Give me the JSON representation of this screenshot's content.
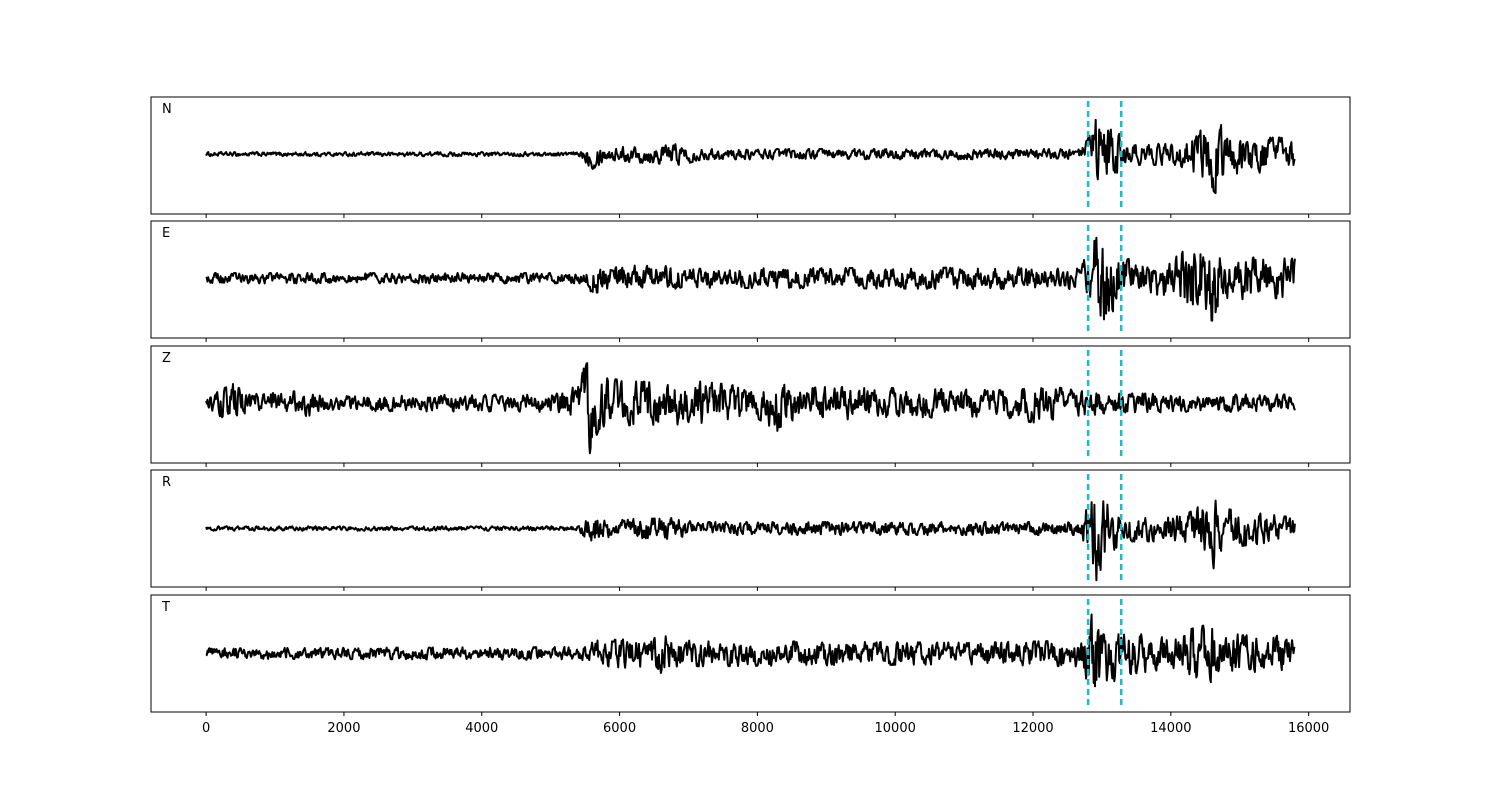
{
  "chart_data": {
    "type": "line",
    "x_axis": {
      "xlim": [
        -800,
        16600
      ],
      "ticks": [
        0,
        2000,
        4000,
        6000,
        8000,
        10000,
        12000,
        14000,
        16000
      ],
      "tick_labels": [
        "0",
        "2000",
        "4000",
        "6000",
        "8000",
        "10000",
        "12000",
        "14000",
        "16000"
      ]
    },
    "n_samples": 15800,
    "marker_lines": {
      "color": "#17becf",
      "style": "dashed",
      "x": [
        12800,
        13280
      ]
    },
    "y_axis": {
      "visible": false,
      "ylim": [
        -1.35,
        1.35
      ]
    },
    "trace_color": "#000000",
    "series": [
      {
        "name": "N",
        "baseline": 0.03,
        "envelope": [
          [
            0,
            0.05
          ],
          [
            5400,
            0.05
          ],
          [
            5500,
            0.18
          ],
          [
            5600,
            0.35
          ],
          [
            5800,
            0.15
          ],
          [
            6900,
            0.25
          ],
          [
            7200,
            0.12
          ],
          [
            11500,
            0.12
          ],
          [
            12700,
            0.12
          ],
          [
            12850,
            0.5
          ],
          [
            12900,
            1.25
          ],
          [
            13000,
            0.7
          ],
          [
            13200,
            0.6
          ],
          [
            13400,
            0.25
          ],
          [
            14100,
            0.25
          ],
          [
            14400,
            0.5
          ],
          [
            14650,
            0.9
          ],
          [
            14800,
            0.5
          ],
          [
            15800,
            0.35
          ]
        ]
      },
      {
        "name": "E",
        "baseline": 0.03,
        "envelope": [
          [
            0,
            0.12
          ],
          [
            5500,
            0.12
          ],
          [
            5600,
            0.35
          ],
          [
            5800,
            0.3
          ],
          [
            6700,
            0.28
          ],
          [
            7000,
            0.22
          ],
          [
            11500,
            0.25
          ],
          [
            12700,
            0.25
          ],
          [
            12900,
            1.1
          ],
          [
            13100,
            0.9
          ],
          [
            13300,
            0.45
          ],
          [
            14000,
            0.4
          ],
          [
            14400,
            0.9
          ],
          [
            14650,
            1.0
          ],
          [
            14800,
            0.5
          ],
          [
            15800,
            0.45
          ]
        ]
      },
      {
        "name": "Z",
        "baseline": 0.03,
        "envelope": [
          [
            0,
            0.15
          ],
          [
            400,
            0.45
          ],
          [
            600,
            0.2
          ],
          [
            1500,
            0.3
          ],
          [
            1700,
            0.18
          ],
          [
            5000,
            0.2
          ],
          [
            5400,
            0.4
          ],
          [
            5560,
            1.2
          ],
          [
            5700,
            0.6
          ],
          [
            6200,
            0.5
          ],
          [
            7200,
            0.5
          ],
          [
            8000,
            0.35
          ],
          [
            8300,
            0.65
          ],
          [
            8500,
            0.4
          ],
          [
            10000,
            0.35
          ],
          [
            11500,
            0.3
          ],
          [
            12000,
            0.45
          ],
          [
            12700,
            0.28
          ],
          [
            14000,
            0.2
          ],
          [
            15800,
            0.2
          ]
        ]
      },
      {
        "name": "R",
        "baseline": 0.0,
        "envelope": [
          [
            0,
            0.05
          ],
          [
            5400,
            0.05
          ],
          [
            5600,
            0.35
          ],
          [
            5800,
            0.2
          ],
          [
            6900,
            0.25
          ],
          [
            7200,
            0.15
          ],
          [
            11500,
            0.15
          ],
          [
            12700,
            0.15
          ],
          [
            12850,
            0.8
          ],
          [
            12930,
            1.25
          ],
          [
            13050,
            0.7
          ],
          [
            13300,
            0.3
          ],
          [
            14200,
            0.3
          ],
          [
            14500,
            0.6
          ],
          [
            14650,
            1.0
          ],
          [
            14800,
            0.45
          ],
          [
            15800,
            0.25
          ]
        ]
      },
      {
        "name": "T",
        "baseline": 0.0,
        "envelope": [
          [
            0,
            0.12
          ],
          [
            5400,
            0.15
          ],
          [
            5600,
            0.3
          ],
          [
            6500,
            0.35
          ],
          [
            6600,
            0.45
          ],
          [
            6800,
            0.3
          ],
          [
            11000,
            0.25
          ],
          [
            12700,
            0.3
          ],
          [
            12900,
            1.1
          ],
          [
            13000,
            0.85
          ],
          [
            13300,
            0.5
          ],
          [
            14000,
            0.35
          ],
          [
            14250,
            0.55
          ],
          [
            14600,
            0.7
          ],
          [
            14800,
            0.45
          ],
          [
            15700,
            0.4
          ],
          [
            15800,
            0.35
          ]
        ]
      }
    ]
  }
}
